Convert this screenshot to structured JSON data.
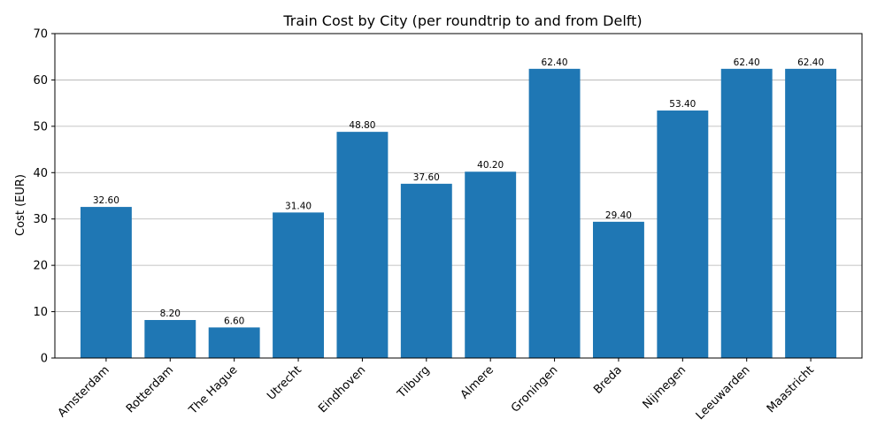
{
  "chart_data": {
    "type": "bar",
    "title": "Train Cost by City (per roundtrip to and from Delft)",
    "xlabel": "",
    "ylabel": "Cost (EUR)",
    "ylim": [
      0,
      70
    ],
    "yticks": [
      0,
      10,
      20,
      30,
      40,
      50,
      60,
      70
    ],
    "grid": "horizontal",
    "bar_color": "#1f77b4",
    "categories": [
      "Amsterdam",
      "Rotterdam",
      "The Hague",
      "Utrecht",
      "Eindhoven",
      "Tilburg",
      "Almere",
      "Groningen",
      "Breda",
      "Nijmegen",
      "Leeuwarden",
      "Maastricht"
    ],
    "values": [
      32.6,
      8.2,
      6.6,
      31.4,
      48.8,
      37.6,
      40.2,
      62.4,
      29.4,
      53.4,
      62.4,
      62.4
    ],
    "value_labels": [
      "32.60",
      "8.20",
      "6.60",
      "31.40",
      "48.80",
      "37.60",
      "40.20",
      "62.40",
      "29.40",
      "53.40",
      "62.40",
      "62.40"
    ]
  }
}
